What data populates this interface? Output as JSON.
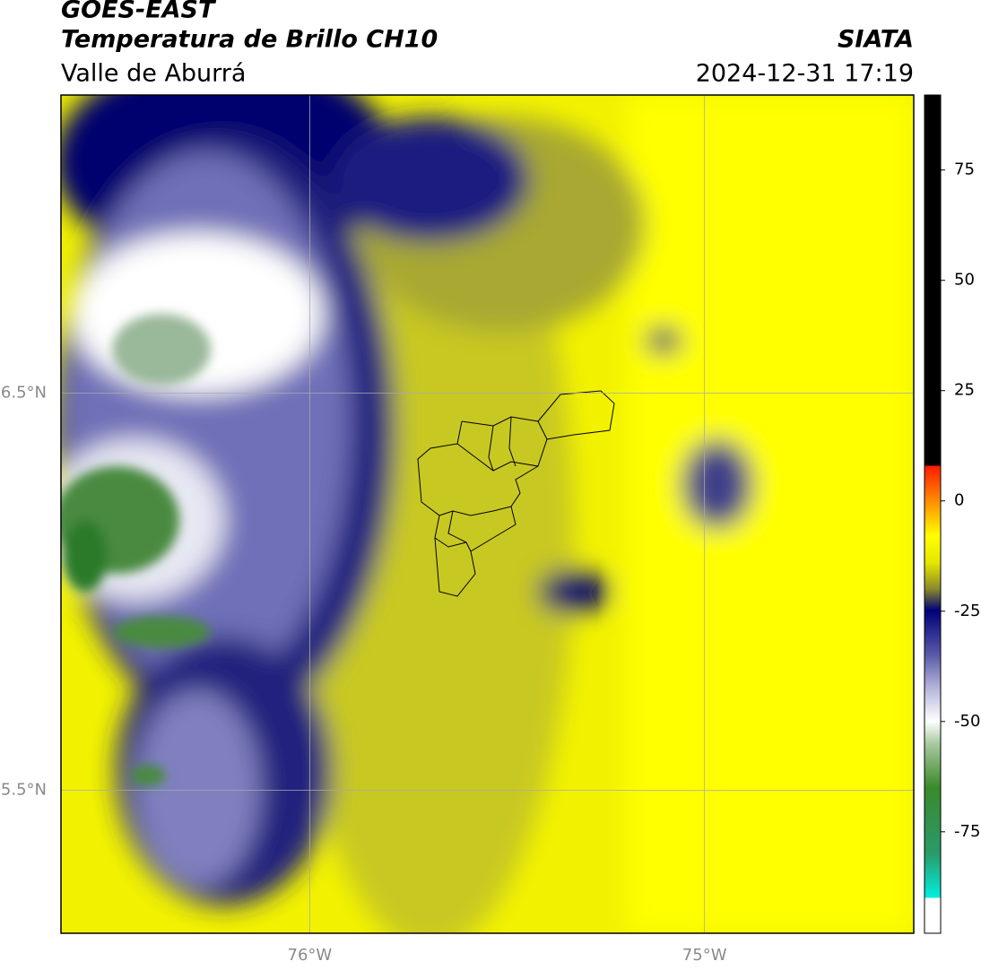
{
  "header": {
    "title": "GOES-EAST",
    "subtitle": "Temperatura de Brillo CH10",
    "region": "Valle de Aburrá",
    "source": "SIATA",
    "timestamp": "2024-12-31 17:19"
  },
  "map": {
    "type": "map",
    "xlim": [
      -76.63,
      -74.47
    ],
    "ylim": [
      5.14,
      7.25
    ],
    "xticks": [
      {
        "value": -76,
        "label": "76°W"
      },
      {
        "value": -75,
        "label": "75°W"
      }
    ],
    "yticks": [
      {
        "value": 6.5,
        "label": "6.5°N"
      },
      {
        "value": 5.5,
        "label": "5.5°N"
      }
    ],
    "grid": true
  },
  "colorbar": {
    "lim": [
      -98,
      92
    ],
    "ticks": [
      75,
      50,
      25,
      0,
      -25,
      -50,
      -75
    ]
  }
}
